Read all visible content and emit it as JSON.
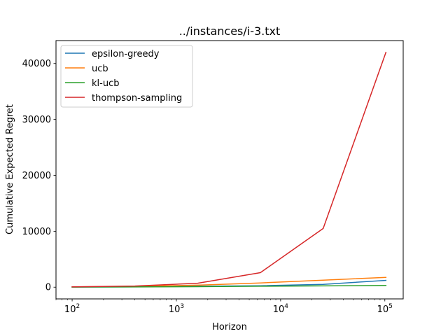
{
  "chart_data": {
    "type": "line",
    "title": "../instances/i-3.txt",
    "xlabel": "Horizon",
    "ylabel": "Cumulative Expected Regret",
    "xscale": "log",
    "x": [
      100,
      400,
      1600,
      6400,
      25600,
      102400
    ],
    "xlim": [
      70,
      150000
    ],
    "ylim": [
      -2100,
      44100
    ],
    "yticks": [
      0,
      10000,
      20000,
      30000,
      40000
    ],
    "xticks_major": [
      100,
      1000,
      10000,
      100000
    ],
    "grid": false,
    "legend_position": "top-left",
    "series": [
      {
        "name": "epsilon-greedy",
        "color": "#1f77b4",
        "values": [
          15,
          60,
          160,
          250,
          500,
          1200
        ]
      },
      {
        "name": "ucb",
        "color": "#ff7f0e",
        "values": [
          40,
          150,
          350,
          750,
          1250,
          1750
        ]
      },
      {
        "name": "kl-ucb",
        "color": "#2ca02c",
        "values": [
          10,
          40,
          90,
          160,
          230,
          300
        ]
      },
      {
        "name": "thompson-sampling",
        "color": "#d62728",
        "values": [
          50,
          200,
          700,
          2600,
          10500,
          42000
        ]
      }
    ]
  }
}
